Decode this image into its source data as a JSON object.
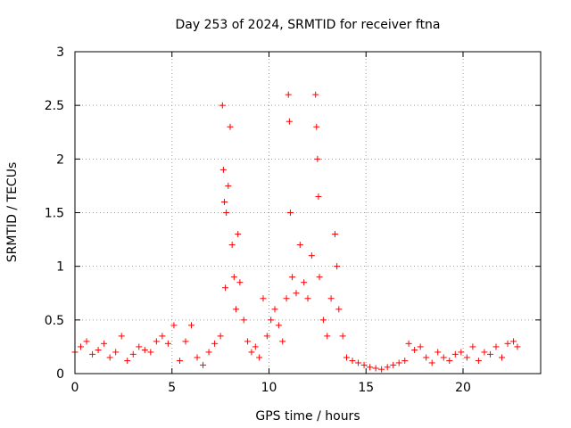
{
  "chart_data": {
    "type": "scatter",
    "title": "Day 253 of 2024, SRMTID for receiver ftna",
    "xlabel": "GPS time / hours",
    "ylabel": "SRMTID / TECUs",
    "xlim": [
      0,
      24
    ],
    "ylim": [
      0,
      3
    ],
    "xticks": [
      0,
      5,
      10,
      15,
      20
    ],
    "yticks": [
      0,
      0.5,
      1,
      1.5,
      2,
      2.5,
      3
    ],
    "xtick_labels": [
      "0",
      "5",
      "10",
      "15",
      "20"
    ],
    "ytick_labels": [
      "0",
      "0.5",
      "1",
      "1.5",
      "2",
      "2.5",
      "3"
    ],
    "grid": true,
    "marker": "+",
    "series": [
      {
        "name": "SRMTID",
        "color": "#ff0000",
        "x": [
          0.0,
          0.3,
          0.6,
          0.9,
          1.2,
          1.5,
          1.8,
          2.1,
          2.4,
          2.7,
          3.0,
          3.3,
          3.6,
          3.9,
          4.2,
          4.5,
          4.8,
          5.1,
          5.4,
          5.7,
          6.0,
          6.3,
          6.6,
          6.9,
          7.2,
          7.5,
          7.6,
          7.65,
          7.7,
          7.75,
          7.8,
          7.9,
          8.0,
          8.1,
          8.2,
          8.3,
          8.4,
          8.5,
          8.7,
          8.9,
          9.1,
          9.3,
          9.5,
          9.7,
          9.9,
          10.1,
          10.3,
          10.5,
          10.7,
          10.9,
          11.0,
          11.05,
          11.1,
          11.2,
          11.4,
          11.6,
          11.8,
          12.0,
          12.2,
          12.4,
          12.45,
          12.5,
          12.55,
          12.6,
          12.8,
          13.0,
          13.2,
          13.4,
          13.5,
          13.6,
          13.8,
          14.0,
          14.3,
          14.6,
          14.9,
          15.2,
          15.5,
          15.8,
          16.1,
          16.4,
          16.7,
          17.0,
          17.2,
          17.5,
          17.8,
          18.1,
          18.4,
          18.7,
          19.0,
          19.3,
          19.6,
          19.9,
          20.2,
          20.5,
          20.8,
          21.1,
          21.4,
          21.7,
          22.0,
          22.3,
          22.6,
          22.8
        ],
        "y": [
          0.2,
          0.25,
          0.3,
          0.18,
          0.22,
          0.28,
          0.15,
          0.2,
          0.35,
          0.12,
          0.18,
          0.25,
          0.22,
          0.2,
          0.3,
          0.35,
          0.28,
          0.45,
          0.12,
          0.3,
          0.45,
          0.15,
          0.08,
          0.2,
          0.28,
          0.35,
          2.5,
          1.9,
          1.6,
          0.8,
          1.5,
          1.75,
          2.3,
          1.2,
          0.9,
          0.6,
          1.3,
          0.85,
          0.5,
          0.3,
          0.2,
          0.25,
          0.15,
          0.7,
          0.35,
          0.5,
          0.6,
          0.45,
          0.3,
          0.7,
          2.6,
          2.35,
          1.5,
          0.9,
          0.75,
          1.2,
          0.85,
          0.7,
          1.1,
          2.6,
          2.3,
          2.0,
          1.65,
          0.9,
          0.5,
          0.35,
          0.7,
          1.3,
          1.0,
          0.6,
          0.35,
          0.15,
          0.12,
          0.1,
          0.08,
          0.06,
          0.05,
          0.04,
          0.06,
          0.08,
          0.1,
          0.12,
          0.28,
          0.22,
          0.25,
          0.15,
          0.1,
          0.2,
          0.15,
          0.12,
          0.18,
          0.2,
          0.15,
          0.25,
          0.12,
          0.2,
          0.18,
          0.25,
          0.15,
          0.28,
          0.3,
          0.25
        ]
      }
    ]
  }
}
